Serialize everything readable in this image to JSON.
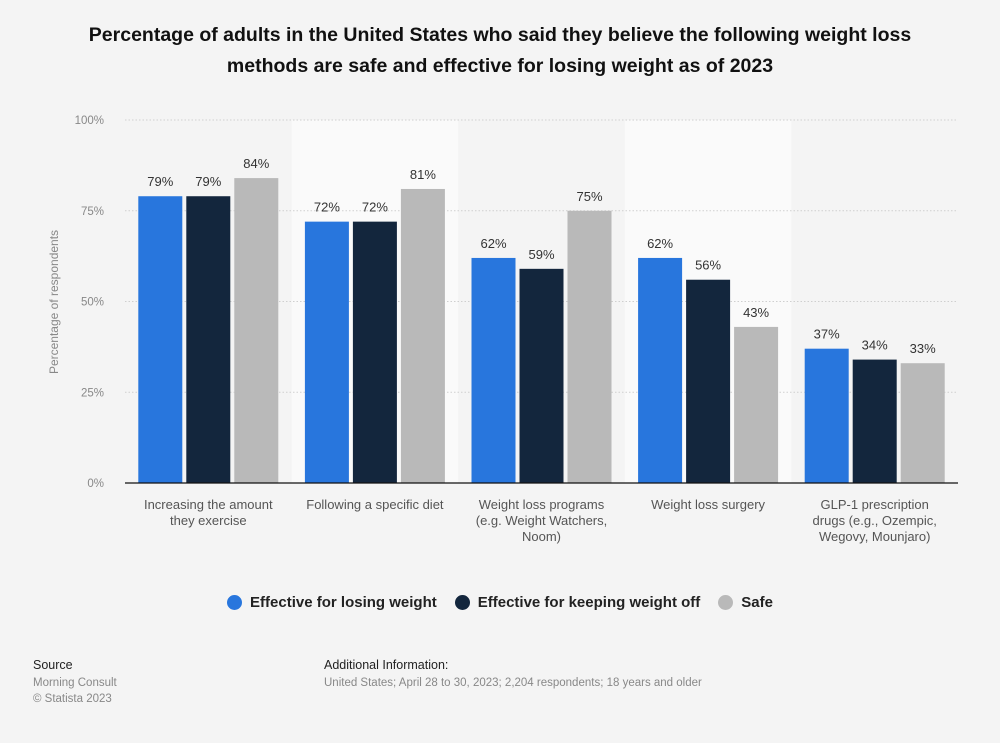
{
  "chart_data": {
    "type": "bar",
    "title": "Percentage of adults in the United States who said they believe the following weight loss methods are safe and effective for losing weight as of 2023",
    "xlabel": "",
    "ylabel": "Percentage of respondents",
    "ylim": [
      0,
      100
    ],
    "yticks": [
      0,
      25,
      50,
      75,
      100
    ],
    "ytick_labels": [
      "0%",
      "25%",
      "50%",
      "75%",
      "100%"
    ],
    "grid": true,
    "legend_position": "bottom",
    "categories": [
      [
        "Increasing the amount",
        "they exercise"
      ],
      [
        "Following a specific diet"
      ],
      [
        "Weight loss programs",
        "(e.g. Weight Watchers,",
        "Noom)"
      ],
      [
        "Weight loss surgery"
      ],
      [
        "GLP-1 prescription",
        "drugs (e.g., Ozempic,",
        "Wegovy, Mounjaro)"
      ]
    ],
    "series": [
      {
        "name": "Effective for losing weight",
        "color": "#2876dd",
        "values": [
          79,
          72,
          62,
          62,
          37
        ]
      },
      {
        "name": "Effective for keeping weight off",
        "color": "#13263d",
        "values": [
          79,
          72,
          59,
          56,
          34
        ]
      },
      {
        "name": "Safe",
        "color": "#b9b9b9",
        "values": [
          84,
          81,
          75,
          43,
          33
        ]
      }
    ],
    "value_suffix": "%"
  },
  "footer": {
    "source_label": "Source",
    "source_lines": [
      "Morning Consult",
      "© Statista 2023"
    ],
    "info_label": "Additional Information:",
    "info_text": "United States; April 28 to 30, 2023; 2,204 respondents; 18 years and older"
  }
}
